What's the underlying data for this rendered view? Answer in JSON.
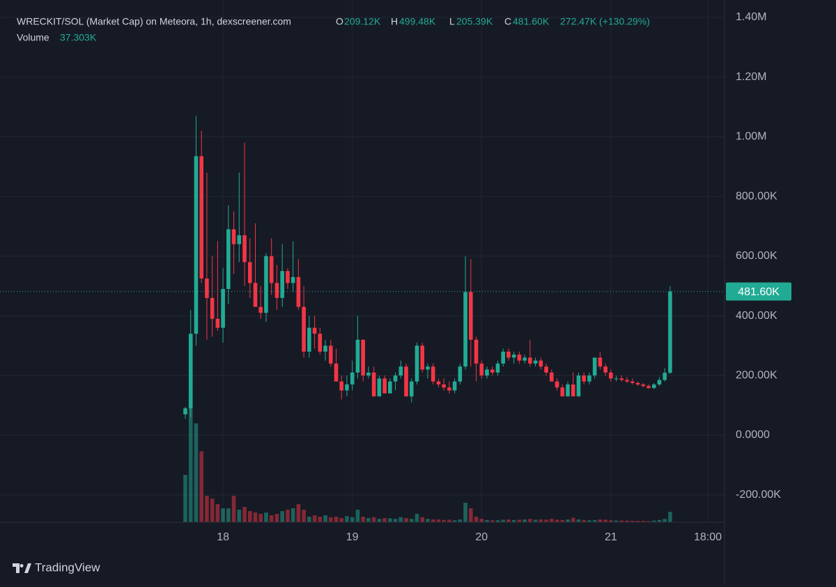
{
  "chart_data": {
    "type": "candlestick",
    "title": "WRECKIT/SOL (Market Cap) on Meteora, 1h, dexscreener.com",
    "legend": {
      "o_key": "O",
      "o": "209.12K",
      "h_key": "H",
      "h": "499.48K",
      "l_key": "L",
      "l": "205.39K",
      "c_key": "C",
      "c": "481.60K",
      "change": "272.47K (+130.29%)",
      "volume_key": "Volume",
      "volume": "37.303K"
    },
    "last_price": {
      "value": 481600,
      "label": "481.60K"
    },
    "up_color": "#22ab94",
    "down_color": "#f23645",
    "grid": true,
    "xlim": [
      -41.4,
      93.1
    ],
    "xticks": [
      {
        "value": 0,
        "label": "18"
      },
      {
        "value": 24,
        "label": "19"
      },
      {
        "value": 48,
        "label": "20"
      },
      {
        "value": 72,
        "label": "21"
      },
      {
        "value": 90,
        "label": "18:00"
      }
    ],
    "ylim": [
      -291700,
      1458300
    ],
    "yticks": [
      {
        "value": 1400000,
        "label": "1.40M"
      },
      {
        "value": 1200000,
        "label": "1.20M"
      },
      {
        "value": 1000000,
        "label": "1.00M"
      },
      {
        "value": 800000,
        "label": "800.00K"
      },
      {
        "value": 600000,
        "label": "600.00K"
      },
      {
        "value": 400000,
        "label": "400.00K"
      },
      {
        "value": 200000,
        "label": "200.00K"
      },
      {
        "value": 0,
        "label": "0.0000"
      },
      {
        "value": -200000,
        "label": "-200.00K"
      }
    ],
    "volume_ylim": [
      0,
      500000
    ],
    "x": [
      -7,
      -6,
      -5,
      -4,
      -3,
      -2,
      -1,
      0,
      1,
      2,
      3,
      4,
      5,
      6,
      7,
      8,
      9,
      10,
      11,
      12,
      13,
      14,
      15,
      16,
      17,
      18,
      19,
      20,
      21,
      22,
      23,
      24,
      25,
      26,
      27,
      28,
      29,
      30,
      31,
      32,
      33,
      34,
      35,
      36,
      37,
      38,
      39,
      40,
      41,
      42,
      43,
      44,
      45,
      46,
      47,
      48,
      49,
      50,
      51,
      52,
      53,
      54,
      55,
      56,
      57,
      58,
      59,
      60,
      61,
      62,
      63,
      64,
      65,
      66,
      67,
      68,
      69,
      70,
      71,
      72,
      73,
      74,
      75,
      76,
      77,
      78,
      79,
      80,
      81,
      82,
      83
    ],
    "open": [
      70000,
      90000,
      340000,
      935000,
      525000,
      460000,
      390000,
      360000,
      490000,
      690000,
      640000,
      670000,
      580000,
      510000,
      430000,
      410000,
      600000,
      510000,
      460000,
      550000,
      510000,
      530000,
      430000,
      280000,
      360000,
      340000,
      280000,
      300000,
      240000,
      180000,
      150000,
      170000,
      210000,
      320000,
      200000,
      210000,
      130000,
      190000,
      140000,
      180000,
      200000,
      230000,
      130000,
      180000,
      300000,
      220000,
      230000,
      180000,
      170000,
      160000,
      150000,
      180000,
      230000,
      480000,
      320000,
      240000,
      200000,
      220000,
      210000,
      240000,
      280000,
      260000,
      270000,
      250000,
      260000,
      240000,
      250000,
      230000,
      210000,
      180000,
      160000,
      130000,
      170000,
      130000,
      200000,
      180000,
      200000,
      260000,
      230000,
      210000,
      190000,
      190000,
      185000,
      180000,
      175000,
      170000,
      165000,
      158000,
      170000,
      185000,
      209120
    ],
    "high": [
      95000,
      420000,
      1070000,
      1020000,
      880000,
      600000,
      650000,
      560000,
      770000,
      750000,
      880000,
      980000,
      660000,
      710000,
      500000,
      610000,
      660000,
      570000,
      640000,
      560000,
      650000,
      590000,
      500000,
      400000,
      400000,
      360000,
      320000,
      320000,
      290000,
      200000,
      200000,
      250000,
      400000,
      320000,
      230000,
      230000,
      200000,
      200000,
      190000,
      210000,
      250000,
      240000,
      190000,
      310000,
      310000,
      240000,
      240000,
      190000,
      190000,
      180000,
      190000,
      240000,
      600000,
      590000,
      330000,
      250000,
      230000,
      230000,
      250000,
      290000,
      290000,
      280000,
      280000,
      270000,
      320000,
      260000,
      260000,
      240000,
      220000,
      190000,
      170000,
      180000,
      210000,
      210000,
      210000,
      210000,
      260000,
      280000,
      240000,
      220000,
      200000,
      200000,
      195000,
      190000,
      180000,
      175000,
      170000,
      175000,
      195000,
      225000,
      499480
    ],
    "low": [
      55000,
      60000,
      300000,
      510000,
      320000,
      330000,
      350000,
      310000,
      440000,
      540000,
      580000,
      500000,
      460000,
      430000,
      390000,
      380000,
      470000,
      420000,
      430000,
      490000,
      480000,
      420000,
      260000,
      260000,
      290000,
      270000,
      250000,
      230000,
      180000,
      120000,
      130000,
      150000,
      190000,
      180000,
      190000,
      130000,
      130000,
      140000,
      140000,
      150000,
      190000,
      130000,
      110000,
      170000,
      210000,
      190000,
      170000,
      160000,
      150000,
      140000,
      140000,
      170000,
      220000,
      230000,
      180000,
      190000,
      190000,
      200000,
      200000,
      230000,
      250000,
      240000,
      240000,
      240000,
      230000,
      230000,
      220000,
      200000,
      180000,
      150000,
      130000,
      130000,
      130000,
      130000,
      170000,
      170000,
      190000,
      220000,
      200000,
      180000,
      180000,
      180000,
      175000,
      170000,
      165000,
      160000,
      155000,
      155000,
      165000,
      180000,
      205390
    ],
    "close": [
      90000,
      340000,
      935000,
      525000,
      460000,
      390000,
      360000,
      490000,
      690000,
      640000,
      670000,
      580000,
      510000,
      430000,
      410000,
      600000,
      510000,
      460000,
      550000,
      510000,
      530000,
      430000,
      280000,
      360000,
      340000,
      280000,
      300000,
      240000,
      180000,
      150000,
      170000,
      210000,
      320000,
      200000,
      210000,
      130000,
      190000,
      140000,
      180000,
      200000,
      230000,
      130000,
      180000,
      300000,
      220000,
      230000,
      180000,
      170000,
      160000,
      150000,
      180000,
      230000,
      480000,
      320000,
      240000,
      200000,
      220000,
      210000,
      240000,
      280000,
      260000,
      270000,
      250000,
      260000,
      240000,
      250000,
      230000,
      210000,
      180000,
      160000,
      130000,
      170000,
      130000,
      200000,
      180000,
      200000,
      260000,
      230000,
      210000,
      190000,
      190000,
      185000,
      180000,
      175000,
      170000,
      165000,
      158000,
      170000,
      185000,
      209120,
      481600
    ],
    "volume": [
      170000,
      485000,
      355000,
      255000,
      95000,
      85000,
      65000,
      50000,
      50000,
      95000,
      45000,
      55000,
      40000,
      35000,
      30000,
      35000,
      25000,
      30000,
      40000,
      45000,
      50000,
      65000,
      45000,
      20000,
      25000,
      20000,
      25000,
      18000,
      20000,
      15000,
      22000,
      18000,
      45000,
      20000,
      15000,
      18000,
      12000,
      15000,
      14000,
      12000,
      18000,
      15000,
      12000,
      30000,
      18000,
      12000,
      10000,
      10000,
      8000,
      9000,
      7000,
      10000,
      70000,
      50000,
      20000,
      12000,
      8000,
      7000,
      7000,
      9000,
      10000,
      8000,
      9000,
      10000,
      12000,
      9000,
      10000,
      9000,
      12000,
      9000,
      8000,
      10000,
      16000,
      10000,
      8000,
      7000,
      8000,
      10000,
      9000,
      7000,
      6000,
      6000,
      6000,
      5000,
      5000,
      5000,
      4000,
      6000,
      8000,
      12000,
      37303
    ]
  }
}
